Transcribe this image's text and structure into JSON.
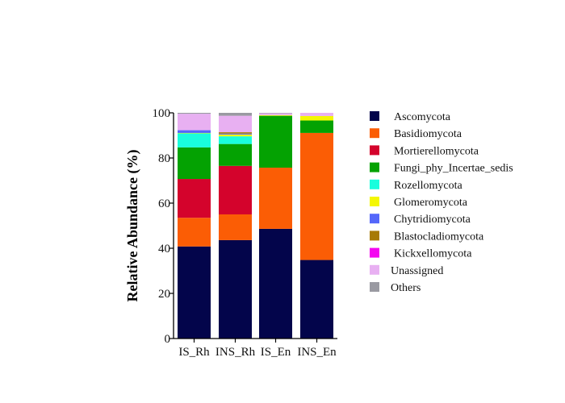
{
  "chart_data": {
    "type": "stacked-bar",
    "title": "",
    "xlabel": "",
    "ylabel": "Relative Abundance (%)",
    "ylim": [
      0,
      100
    ],
    "yticks": [
      0,
      20,
      40,
      60,
      80,
      100
    ],
    "grid": false,
    "legend_position": "right",
    "categories": [
      "IS_Rh",
      "INS_Rh",
      "IS_En",
      "INS_En"
    ],
    "series": [
      {
        "name": "Ascomycota",
        "color": "#03054b",
        "values": [
          40.8,
          43.6,
          48.6,
          34.8
        ]
      },
      {
        "name": "Basidiomycota",
        "color": "#fb5d05",
        "values": [
          12.7,
          11.4,
          27.1,
          56.3
        ]
      },
      {
        "name": "Mortierellomycota",
        "color": "#d4032c",
        "values": [
          17.2,
          21.5,
          0.0,
          0.0
        ]
      },
      {
        "name": "Fungi_phy_Incertae_sedis",
        "color": "#04a202",
        "values": [
          14.0,
          9.7,
          23.0,
          5.5
        ]
      },
      {
        "name": "Rozellomycota",
        "color": "#19fedd",
        "values": [
          6.2,
          3.4,
          0.0,
          0.0
        ]
      },
      {
        "name": "Glomeromycota",
        "color": "#f4f704",
        "values": [
          0.2,
          0.8,
          0.3,
          2.0
        ]
      },
      {
        "name": "Chytridiomycota",
        "color": "#5467fa",
        "values": [
          1.2,
          0.4,
          0.0,
          0.0
        ]
      },
      {
        "name": "Blastocladiomycota",
        "color": "#a77a05",
        "values": [
          0.0,
          0.6,
          0.0,
          0.0
        ]
      },
      {
        "name": "Kickxellomycota",
        "color": "#f406f0",
        "values": [
          0.0,
          0.0,
          0.0,
          0.0
        ]
      },
      {
        "name": "Unassigned",
        "color": "#e8b0f2",
        "values": [
          7.3,
          7.3,
          0.8,
          1.4
        ]
      },
      {
        "name": "Others",
        "color": "#9a9aa2",
        "values": [
          0.4,
          1.3,
          0.2,
          0.0
        ]
      }
    ]
  }
}
